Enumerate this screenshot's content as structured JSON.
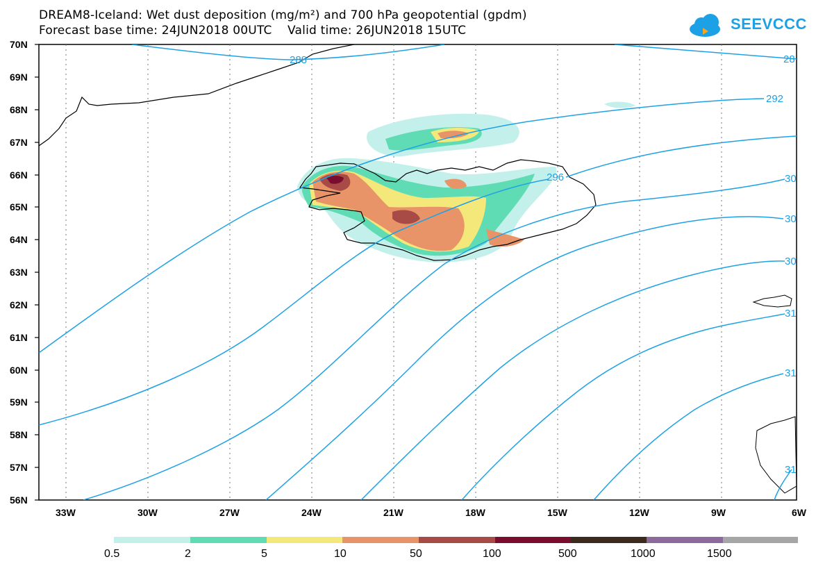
{
  "header": {
    "title_line1": "DREAM8-Iceland: Wet dust deposition (mg/m²) and 700 hPa geopotential (gpdm)",
    "title_line2": "Forecast base time: 24JUN2018 00UTC    Valid time: 26JUN2018 15UTC"
  },
  "logo": {
    "text": "SEEVCCC",
    "icon": "cloud-icon",
    "color": "#1da1e6"
  },
  "map": {
    "lat_labels": [
      "70N",
      "69N",
      "68N",
      "67N",
      "66N",
      "65N",
      "64N",
      "63N",
      "62N",
      "61N",
      "60N",
      "59N",
      "58N",
      "57N",
      "56N"
    ],
    "lon_labels": [
      "33W",
      "30W",
      "27W",
      "24W",
      "21W",
      "18W",
      "15W",
      "12W",
      "9W",
      "6W"
    ],
    "contour_color": "#1da1e6",
    "contour_labels": [
      "288",
      "28",
      "292",
      "296",
      "30",
      "30",
      "30",
      "31",
      "31",
      "31"
    ]
  },
  "legend": {
    "colors": [
      "#c4f0ec",
      "#5fdcb4",
      "#f5e87a",
      "#e89468",
      "#a84a45",
      "#7a0c2e",
      "#3d2a1e",
      "#8d6a9c",
      "#a6a6a6"
    ],
    "labels": [
      "0.5",
      "2",
      "5",
      "10",
      "50",
      "100",
      "500",
      "1000",
      "1500"
    ]
  }
}
